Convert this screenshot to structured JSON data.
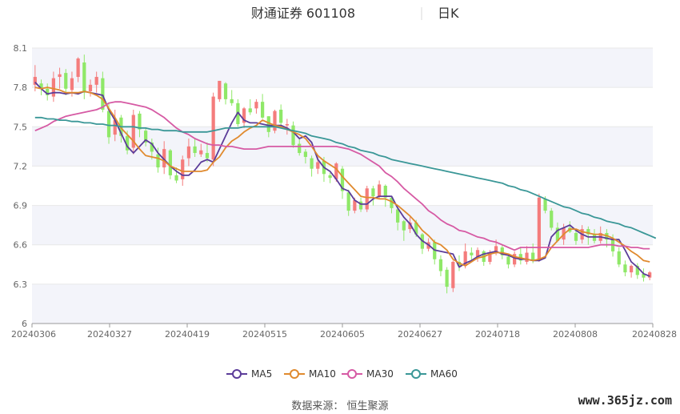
{
  "header": {
    "stock": "财通证券 601108",
    "period": "日K"
  },
  "footer": {
    "source": "数据来源： 恒生聚源",
    "watermark": "www.365jz.com"
  },
  "chart_data": {
    "type": "candlestick",
    "ylim": [
      6,
      8.1
    ],
    "y_ticks": [
      "8.1",
      "7.8",
      "7.5",
      "7.2",
      "6.9",
      "6.6",
      "6.3",
      "6"
    ],
    "x_ticks": [
      "20240306",
      "20240327",
      "20240419",
      "20240515",
      "20240605",
      "20240627",
      "20240718",
      "20240808",
      "20240828"
    ],
    "colors": {
      "up": "#f47c7c",
      "down": "#8fe868",
      "band": "#f3f4fa"
    },
    "legend": [
      {
        "name": "MA5",
        "color": "#5b3c99"
      },
      {
        "name": "MA10",
        "color": "#e08a2e"
      },
      {
        "name": "MA30",
        "color": "#d65aa4"
      },
      {
        "name": "MA60",
        "color": "#3a9797"
      }
    ],
    "candles": [
      [
        7.82,
        7.88,
        7.97,
        7.77
      ],
      [
        7.83,
        7.79,
        7.86,
        7.74
      ],
      [
        7.79,
        7.74,
        7.83,
        7.7
      ],
      [
        7.73,
        7.87,
        7.92,
        7.69
      ],
      [
        7.88,
        7.9,
        7.95,
        7.79
      ],
      [
        7.91,
        7.79,
        7.94,
        7.74
      ],
      [
        7.78,
        7.87,
        7.92,
        7.73
      ],
      [
        7.88,
        8.02,
        8.03,
        7.84
      ],
      [
        7.99,
        7.76,
        8.05,
        7.71
      ],
      [
        7.77,
        7.82,
        7.86,
        7.73
      ],
      [
        7.82,
        7.88,
        7.92,
        7.76
      ],
      [
        7.87,
        7.63,
        7.92,
        7.61
      ],
      [
        7.62,
        7.42,
        7.68,
        7.37
      ],
      [
        7.44,
        7.55,
        7.63,
        7.39
      ],
      [
        7.57,
        7.43,
        7.59,
        7.38
      ],
      [
        7.43,
        7.32,
        7.47,
        7.29
      ],
      [
        7.34,
        7.59,
        7.63,
        7.29
      ],
      [
        7.6,
        7.48,
        7.62,
        7.42
      ],
      [
        7.47,
        7.38,
        7.49,
        7.35
      ],
      [
        7.38,
        7.31,
        7.41,
        7.25
      ],
      [
        7.29,
        7.19,
        7.34,
        7.15
      ],
      [
        7.19,
        7.33,
        7.39,
        7.14
      ],
      [
        7.32,
        7.13,
        7.33,
        7.1
      ],
      [
        7.13,
        7.09,
        7.19,
        7.07
      ],
      [
        7.1,
        7.25,
        7.28,
        7.05
      ],
      [
        7.26,
        7.35,
        7.41,
        7.2
      ],
      [
        7.35,
        7.3,
        7.41,
        7.27
      ],
      [
        7.29,
        7.32,
        7.37,
        7.27
      ],
      [
        7.3,
        7.26,
        7.38,
        7.23
      ],
      [
        7.25,
        7.73,
        7.76,
        7.2
      ],
      [
        7.71,
        7.85,
        7.85,
        7.69
      ],
      [
        7.83,
        7.71,
        7.84,
        7.67
      ],
      [
        7.71,
        7.68,
        7.78,
        7.66
      ],
      [
        7.68,
        7.52,
        7.71,
        7.5
      ],
      [
        7.53,
        7.64,
        7.65,
        7.49
      ],
      [
        7.64,
        7.61,
        7.71,
        7.59
      ],
      [
        7.64,
        7.69,
        7.71,
        7.6
      ],
      [
        7.69,
        7.57,
        7.75,
        7.56
      ],
      [
        7.58,
        7.46,
        7.58,
        7.42
      ],
      [
        7.47,
        7.62,
        7.63,
        7.45
      ],
      [
        7.63,
        7.53,
        7.67,
        7.5
      ],
      [
        7.51,
        7.52,
        7.56,
        7.44
      ],
      [
        7.51,
        7.36,
        7.54,
        7.34
      ],
      [
        7.37,
        7.3,
        7.41,
        7.28
      ],
      [
        7.31,
        7.27,
        7.33,
        7.22
      ],
      [
        7.26,
        7.18,
        7.28,
        7.12
      ],
      [
        7.18,
        7.23,
        7.27,
        7.14
      ],
      [
        7.24,
        7.14,
        7.27,
        7.08
      ],
      [
        7.13,
        7.11,
        7.15,
        7.07
      ],
      [
        7.1,
        7.22,
        7.23,
        7.08
      ],
      [
        7.18,
        7.01,
        7.2,
        6.95
      ],
      [
        7.0,
        6.86,
        7.02,
        6.82
      ],
      [
        6.86,
        6.94,
        6.96,
        6.84
      ],
      [
        6.93,
        6.87,
        6.96,
        6.85
      ],
      [
        6.87,
        7.03,
        7.05,
        6.85
      ],
      [
        7.03,
        6.97,
        7.05,
        6.9
      ],
      [
        6.97,
        7.06,
        7.09,
        6.95
      ],
      [
        7.05,
        6.96,
        7.06,
        6.89
      ],
      [
        6.96,
        6.88,
        6.97,
        6.84
      ],
      [
        6.87,
        6.77,
        6.88,
        6.71
      ],
      [
        6.78,
        6.71,
        6.79,
        6.63
      ],
      [
        6.72,
        6.77,
        6.81,
        6.69
      ],
      [
        6.77,
        6.68,
        6.79,
        6.66
      ],
      [
        6.68,
        6.57,
        6.69,
        6.53
      ],
      [
        6.57,
        6.62,
        6.65,
        6.55
      ],
      [
        6.62,
        6.49,
        6.64,
        6.45
      ],
      [
        6.49,
        6.4,
        6.52,
        6.36
      ],
      [
        6.41,
        6.28,
        6.43,
        6.23
      ],
      [
        6.27,
        6.47,
        6.48,
        6.24
      ],
      [
        6.47,
        6.44,
        6.52,
        6.4
      ],
      [
        6.44,
        6.55,
        6.61,
        6.42
      ],
      [
        6.54,
        6.52,
        6.58,
        6.48
      ],
      [
        6.51,
        6.56,
        6.58,
        6.47
      ],
      [
        6.55,
        6.47,
        6.56,
        6.44
      ],
      [
        6.47,
        6.54,
        6.56,
        6.45
      ],
      [
        6.55,
        6.59,
        6.64,
        6.52
      ],
      [
        6.58,
        6.52,
        6.6,
        6.49
      ],
      [
        6.51,
        6.45,
        6.53,
        6.42
      ],
      [
        6.45,
        6.53,
        6.55,
        6.43
      ],
      [
        6.53,
        6.48,
        6.58,
        6.45
      ],
      [
        6.47,
        6.54,
        6.59,
        6.45
      ],
      [
        6.54,
        6.48,
        6.61,
        6.46
      ],
      [
        6.48,
        6.96,
        6.99,
        6.47
      ],
      [
        6.95,
        6.86,
        6.97,
        6.84
      ],
      [
        6.86,
        6.73,
        6.88,
        6.71
      ],
      [
        6.73,
        6.63,
        6.77,
        6.62
      ],
      [
        6.64,
        6.73,
        6.76,
        6.6
      ],
      [
        6.73,
        6.7,
        6.78,
        6.69
      ],
      [
        6.69,
        6.63,
        6.72,
        6.6
      ],
      [
        6.64,
        6.72,
        6.75,
        6.61
      ],
      [
        6.72,
        6.68,
        6.74,
        6.6
      ],
      [
        6.68,
        6.63,
        6.72,
        6.61
      ],
      [
        6.63,
        6.69,
        6.74,
        6.61
      ],
      [
        6.69,
        6.64,
        6.72,
        6.58
      ],
      [
        6.64,
        6.55,
        6.68,
        6.51
      ],
      [
        6.55,
        6.45,
        6.58,
        6.43
      ],
      [
        6.45,
        6.39,
        6.48,
        6.36
      ],
      [
        6.39,
        6.44,
        6.45,
        6.35
      ],
      [
        6.44,
        6.37,
        6.46,
        6.34
      ],
      [
        6.38,
        6.35,
        6.42,
        6.32
      ],
      [
        6.35,
        6.39,
        6.4,
        6.33
      ]
    ],
    "ma5": [
      7.84,
      7.79,
      7.75,
      7.76,
      7.76,
      7.75,
      7.76,
      7.75,
      7.77,
      7.76,
      7.75,
      7.74,
      7.63,
      7.55,
      7.45,
      7.35,
      7.3,
      7.35,
      7.4,
      7.37,
      7.3,
      7.25,
      7.2,
      7.16,
      7.13,
      7.13,
      7.17,
      7.23,
      7.25,
      7.23,
      7.33,
      7.43,
      7.53,
      7.61,
      7.55,
      7.53,
      7.53,
      7.52,
      7.51,
      7.51,
      7.51,
      7.49,
      7.46,
      7.41,
      7.43,
      7.38,
      7.25,
      7.19,
      7.16,
      7.1,
      7.03,
      7.01,
      6.94,
      6.91,
      6.91,
      6.95,
      6.97,
      6.97,
      6.97,
      6.88,
      6.81,
      6.76,
      6.68,
      6.63,
      6.6,
      6.56,
      6.55,
      6.54,
      6.53,
      6.43,
      6.46,
      6.48,
      6.51,
      6.53,
      6.54,
      6.55,
      6.53,
      6.52,
      6.5,
      6.49,
      6.49,
      6.48,
      6.48,
      6.5,
      6.66,
      6.71,
      6.73,
      6.75,
      6.71,
      6.68,
      6.66,
      6.66,
      6.66,
      6.65,
      6.64,
      6.64,
      6.56,
      6.47,
      6.43,
      6.38,
      6.36
    ],
    "ma10": [
      7.8,
      7.79,
      7.8,
      7.79,
      7.78,
      7.76,
      7.76,
      7.76,
      7.77,
      7.76,
      7.74,
      7.71,
      7.64,
      7.57,
      7.49,
      7.44,
      7.39,
      7.33,
      7.28,
      7.27,
      7.26,
      7.24,
      7.2,
      7.18,
      7.16,
      7.16,
      7.16,
      7.16,
      7.17,
      7.23,
      7.27,
      7.34,
      7.39,
      7.42,
      7.46,
      7.49,
      7.51,
      7.55,
      7.53,
      7.51,
      7.5,
      7.48,
      7.46,
      7.44,
      7.41,
      7.35,
      7.28,
      7.24,
      7.21,
      7.18,
      7.12,
      7.07,
      7.02,
      6.97,
      6.96,
      6.96,
      6.95,
      6.95,
      6.93,
      6.9,
      6.86,
      6.82,
      6.77,
      6.71,
      6.67,
      6.62,
      6.6,
      6.56,
      6.49,
      6.46,
      6.44,
      6.47,
      6.5,
      6.51,
      6.53,
      6.54,
      6.54,
      6.53,
      6.51,
      6.5,
      6.49,
      6.48,
      6.49,
      6.51,
      6.58,
      6.63,
      6.68,
      6.72,
      6.72,
      6.7,
      6.69,
      6.68,
      6.68,
      6.67,
      6.65,
      6.62,
      6.59,
      6.55,
      6.52,
      6.48,
      6.47
    ],
    "ma30": [
      7.47,
      7.49,
      7.51,
      7.54,
      7.56,
      7.58,
      7.59,
      7.6,
      7.61,
      7.62,
      7.63,
      7.65,
      7.68,
      7.69,
      7.69,
      7.68,
      7.67,
      7.66,
      7.65,
      7.63,
      7.6,
      7.57,
      7.53,
      7.49,
      7.46,
      7.44,
      7.41,
      7.39,
      7.37,
      7.36,
      7.36,
      7.35,
      7.35,
      7.34,
      7.33,
      7.33,
      7.33,
      7.34,
      7.35,
      7.35,
      7.35,
      7.35,
      7.35,
      7.35,
      7.35,
      7.35,
      7.35,
      7.35,
      7.35,
      7.35,
      7.34,
      7.33,
      7.31,
      7.29,
      7.26,
      7.23,
      7.2,
      7.15,
      7.12,
      7.08,
      7.03,
      6.99,
      6.95,
      6.91,
      6.86,
      6.83,
      6.79,
      6.76,
      6.74,
      6.71,
      6.7,
      6.68,
      6.66,
      6.65,
      6.63,
      6.62,
      6.6,
      6.58,
      6.56,
      6.58,
      6.58,
      6.58,
      6.58,
      6.58,
      6.58,
      6.58,
      6.58,
      6.58,
      6.58,
      6.58,
      6.58,
      6.59,
      6.6,
      6.6,
      6.6,
      6.59,
      6.59,
      6.58,
      6.58,
      6.57,
      6.57
    ],
    "ma60": [
      7.57,
      7.57,
      7.56,
      7.56,
      7.55,
      7.55,
      7.54,
      7.54,
      7.53,
      7.53,
      7.52,
      7.52,
      7.51,
      7.51,
      7.5,
      7.5,
      7.5,
      7.49,
      7.49,
      7.48,
      7.48,
      7.47,
      7.47,
      7.47,
      7.46,
      7.46,
      7.46,
      7.46,
      7.46,
      7.47,
      7.48,
      7.49,
      7.49,
      7.49,
      7.5,
      7.5,
      7.5,
      7.5,
      7.5,
      7.5,
      7.49,
      7.48,
      7.47,
      7.46,
      7.45,
      7.43,
      7.42,
      7.41,
      7.4,
      7.38,
      7.37,
      7.35,
      7.34,
      7.32,
      7.31,
      7.3,
      7.28,
      7.27,
      7.25,
      7.24,
      7.23,
      7.22,
      7.21,
      7.2,
      7.19,
      7.18,
      7.17,
      7.16,
      7.15,
      7.14,
      7.13,
      7.12,
      7.11,
      7.1,
      7.09,
      7.08,
      7.07,
      7.05,
      7.04,
      7.02,
      7.01,
      6.99,
      6.97,
      6.95,
      6.93,
      6.91,
      6.89,
      6.88,
      6.86,
      6.84,
      6.83,
      6.81,
      6.8,
      6.78,
      6.77,
      6.76,
      6.74,
      6.73,
      6.71,
      6.69,
      6.67,
      6.65
    ]
  }
}
